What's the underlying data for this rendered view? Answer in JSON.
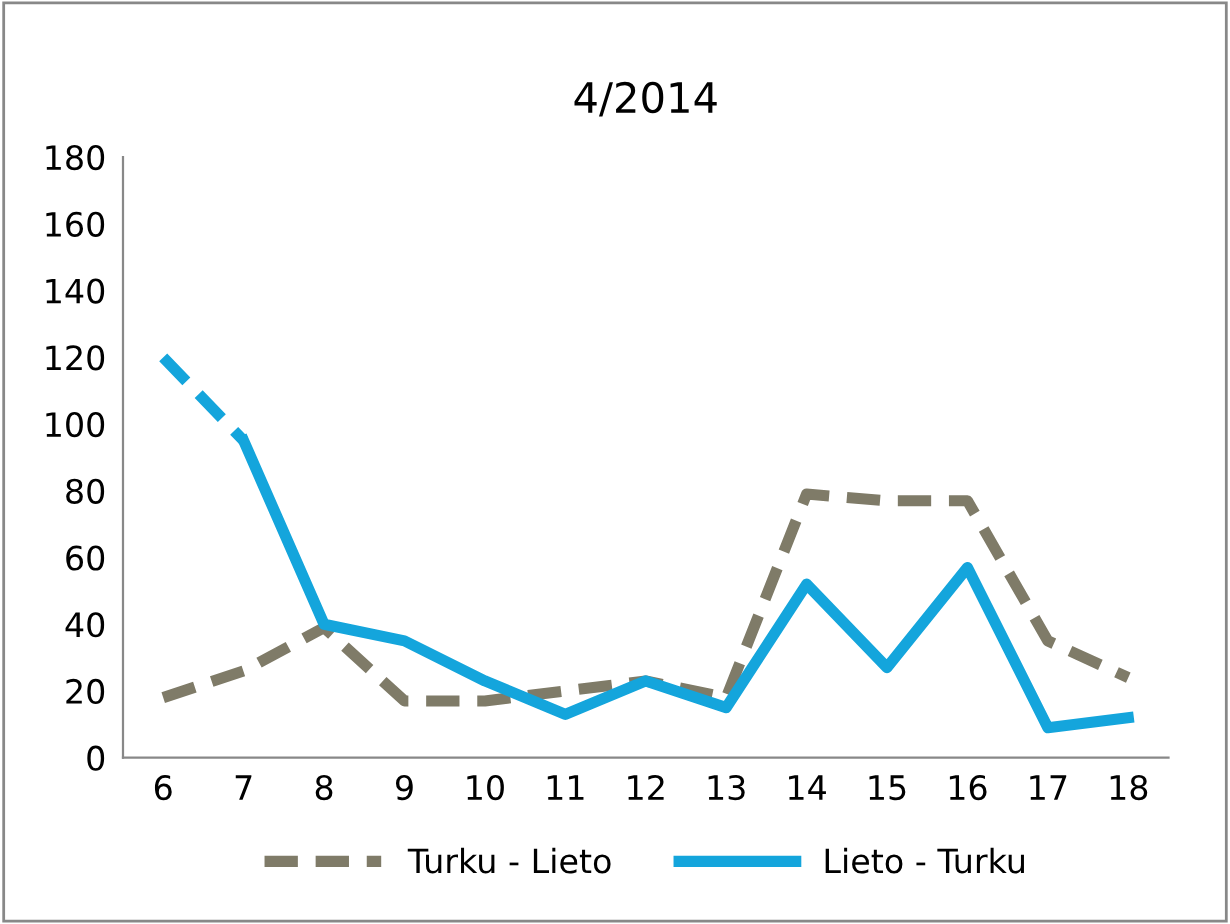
{
  "chart_data": {
    "type": "line",
    "title": "4/2014",
    "categories": [
      "6",
      "7",
      "8",
      "9",
      "10",
      "11",
      "12",
      "13",
      "14",
      "15",
      "16",
      "17",
      "18"
    ],
    "series": [
      {
        "name": "Turku - Lieto",
        "color": "#7f7b68",
        "line_style": "dashed",
        "values": [
          18,
          26,
          39,
          17,
          17,
          20,
          23,
          18,
          79,
          77,
          77,
          35,
          24
        ]
      },
      {
        "color": "#14a5dc",
        "line_style": "dashed",
        "values": [
          120,
          95,
          null,
          null,
          null,
          null,
          null,
          null,
          null,
          null,
          null,
          null,
          null
        ]
      },
      {
        "name": "Lieto - Turku",
        "color": "#14a5dc",
        "line_style": "solid",
        "values": [
          null,
          95,
          40,
          35,
          23,
          13,
          23,
          15,
          52,
          27,
          57,
          9,
          12
        ]
      }
    ],
    "ylim": [
      0,
      180
    ],
    "yticks": [
      0,
      20,
      40,
      60,
      80,
      100,
      120,
      140,
      160,
      180
    ],
    "grid": false,
    "legend": "bottom",
    "marker": "none"
  }
}
